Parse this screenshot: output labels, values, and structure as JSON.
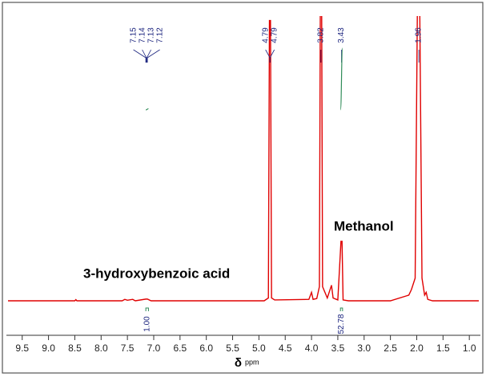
{
  "chart_data": {
    "type": "nmr",
    "x": [
      9.77,
      8.5,
      8.48,
      8.46,
      7.6,
      7.55,
      7.5,
      7.4,
      7.35,
      7.15,
      7.12,
      7.05,
      4.9,
      4.82,
      4.8,
      4.78,
      4.76,
      4.7,
      4.05,
      4.0,
      3.97,
      3.9,
      3.85,
      3.83,
      3.81,
      3.79,
      3.7,
      3.62,
      3.59,
      3.5,
      3.44,
      3.42,
      3.4,
      3.3,
      2.5,
      2.15,
      2.1,
      2.03,
      1.98,
      1.95,
      1.9,
      1.85,
      1.82,
      1.79,
      1.7,
      0.82
    ],
    "values": [
      0,
      0,
      0.4,
      0,
      0,
      0.5,
      0.2,
      0.5,
      0,
      0.6,
      0.6,
      0,
      0,
      1,
      99,
      99,
      1,
      0.3,
      0.5,
      3,
      0.5,
      0.8,
      5,
      120,
      120,
      5,
      1,
      5.5,
      1,
      0.3,
      21,
      21,
      0.3,
      0,
      0,
      2,
      4,
      8,
      120,
      120,
      8,
      2,
      3,
      0.5,
      0,
      0
    ],
    "color": "#e00000",
    "xlim": [
      9.77,
      0.82
    ],
    "ylim": [
      0,
      100
    ],
    "xticks": [
      9.5,
      {
        "value": 9,
        "label": "9.0"
      },
      8.5,
      {
        "value": 8,
        "label": "8.0"
      },
      7.5,
      {
        "value": 7,
        "label": "7.0"
      },
      6.5,
      {
        "value": 6,
        "label": "6.0"
      },
      5.5,
      {
        "value": 5,
        "label": "5.0"
      },
      4.5,
      {
        "value": 4,
        "label": "4.0"
      },
      3.5,
      {
        "value": 3,
        "label": "3.0"
      },
      2.5,
      {
        "value": 2,
        "label": "2.0"
      },
      1.5,
      {
        "value": 1,
        "label": "1.0"
      }
    ],
    "xlabel": "δ",
    "xlabel_unit": "ppm",
    "peak_labels": [
      7.15,
      7.14,
      7.13,
      7.12,
      4.79,
      4.79,
      3.82,
      3.43,
      1.96
    ],
    "integrals": [
      {
        "value": 1,
        "label": "1.00",
        "from": 7.15,
        "to": 7.1
      },
      {
        "value": 52.78,
        "from": 3.45,
        "to": 3.41
      }
    ],
    "annotations": [
      "Methanol",
      "3-hydroxybenzoic acid"
    ]
  }
}
